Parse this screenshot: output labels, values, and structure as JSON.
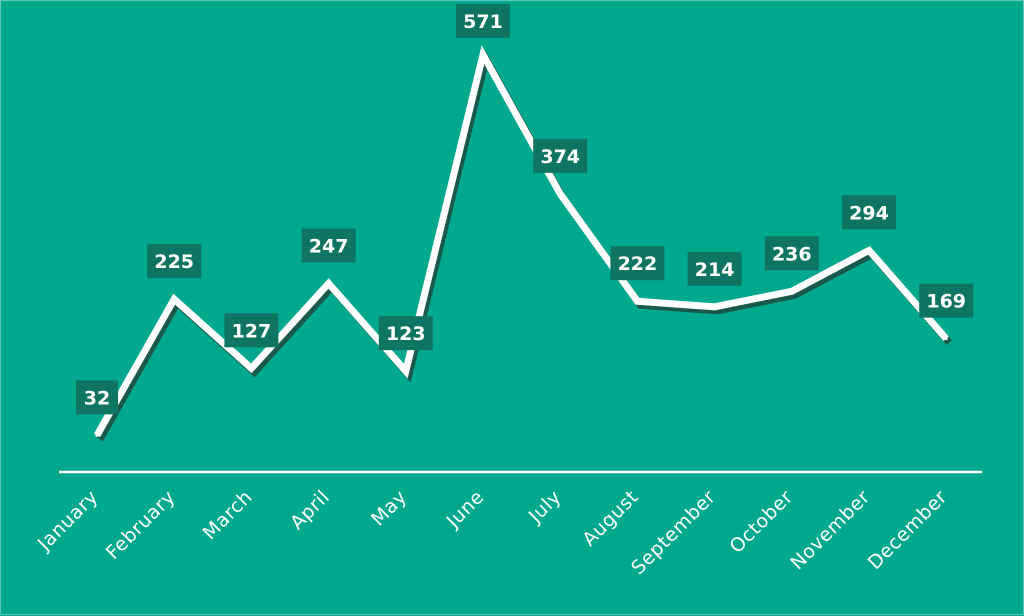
{
  "chart_data": {
    "type": "line",
    "categories": [
      "January",
      "February",
      "March",
      "April",
      "May",
      "June",
      "July",
      "August",
      "September",
      "October",
      "November",
      "December"
    ],
    "values": [
      32,
      225,
      127,
      247,
      123,
      571,
      374,
      222,
      214,
      236,
      294,
      169
    ],
    "title": "",
    "xlabel": "",
    "ylabel": "",
    "ylim": [
      0,
      600
    ],
    "grid": false,
    "legend": "none",
    "data_labels": true,
    "drop_lines": true,
    "colors": {
      "background": "#00a88e",
      "line": "#ffffff",
      "line_shadow": "#1f4a3f",
      "label_box": "#0f7563",
      "label_text": "#ffffff",
      "axis": "#ffffff"
    }
  }
}
